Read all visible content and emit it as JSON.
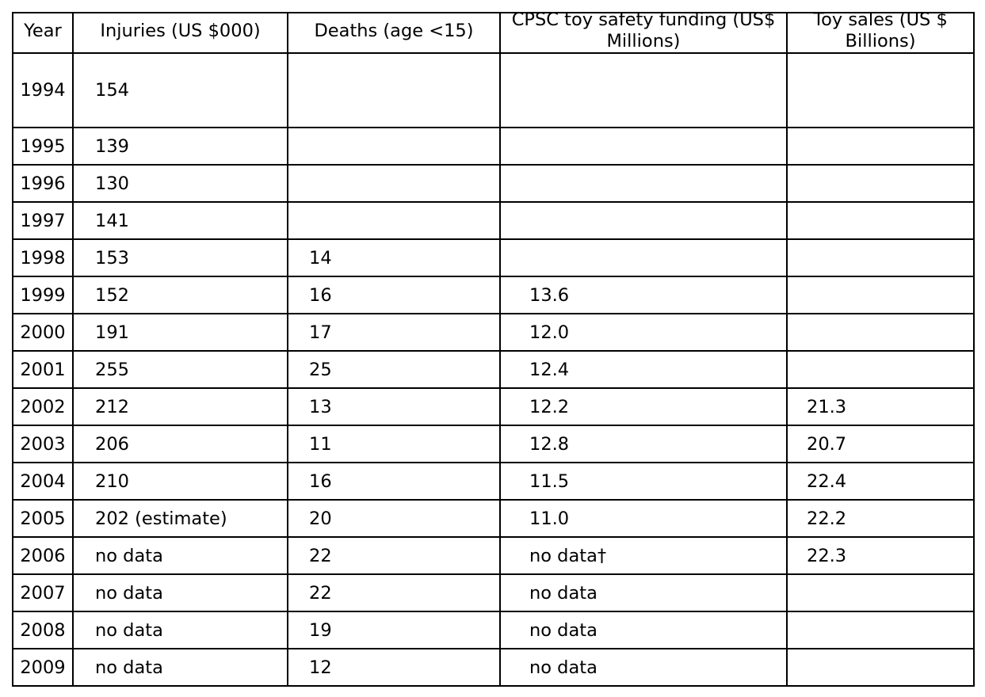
{
  "chart_data": {
    "type": "table",
    "columns": [
      "Year",
      "Injuries (US $000)",
      "Deaths (age <15)",
      "CPSC toy safety funding (US$ Millions)",
      "Toy sales  (US $ Billions)"
    ],
    "rows": [
      [
        "1994",
        "154",
        "",
        "",
        ""
      ],
      [
        "1995",
        "139",
        "",
        "",
        ""
      ],
      [
        "1996",
        "130",
        "",
        "",
        ""
      ],
      [
        "1997",
        "141",
        "",
        "",
        ""
      ],
      [
        "1998",
        "153",
        "14",
        "",
        ""
      ],
      [
        "1999",
        "152",
        "16",
        "13.6",
        ""
      ],
      [
        "2000",
        "191",
        "17",
        "12.0",
        ""
      ],
      [
        "2001",
        "255",
        "25",
        "12.4",
        ""
      ],
      [
        "2002",
        "212",
        "13",
        "12.2",
        "21.3"
      ],
      [
        "2003",
        "206",
        "11",
        "12.8",
        "20.7"
      ],
      [
        "2004",
        "210",
        "16",
        "11.5",
        "22.4"
      ],
      [
        "2005",
        "202 (estimate)",
        "20",
        "11.0",
        "22.2"
      ],
      [
        "2006",
        "no data",
        "22",
        "no data†",
        "22.3"
      ],
      [
        "2007",
        "no data",
        "22",
        "no data",
        ""
      ],
      [
        "2008",
        "no data",
        "19",
        "no data",
        ""
      ],
      [
        "2009",
        "no data",
        "12",
        "no data",
        ""
      ]
    ]
  }
}
